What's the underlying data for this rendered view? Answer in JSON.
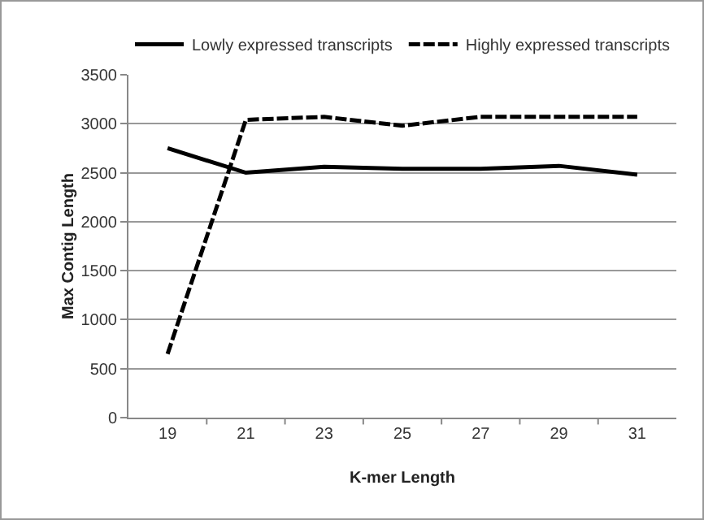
{
  "chart_data": {
    "type": "line",
    "xlabel": "K-mer Length",
    "ylabel": "Max Contig Length",
    "categories": [
      "19",
      "21",
      "23",
      "25",
      "27",
      "29",
      "31"
    ],
    "series": [
      {
        "name": "Lowly expressed transcripts",
        "color": "#000000",
        "line_style": "solid",
        "values": [
          2750,
          2500,
          2560,
          2540,
          2540,
          2570,
          2480
        ]
      },
      {
        "name": "Highly expressed transcripts",
        "color": "#000000",
        "line_style": "dashed",
        "values": [
          650,
          3040,
          3070,
          2980,
          3070,
          3070,
          3070
        ]
      }
    ],
    "ylim": [
      0,
      3500
    ],
    "yticks": [
      0,
      500,
      1000,
      1500,
      2000,
      2500,
      3000,
      3500
    ],
    "grid": "y",
    "legend": "top",
    "marker": "none"
  }
}
